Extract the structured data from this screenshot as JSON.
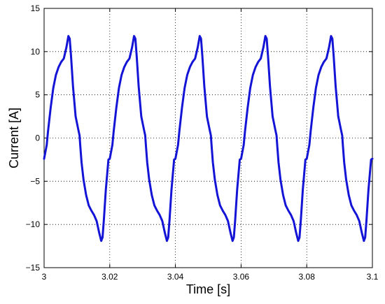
{
  "chart_data": {
    "type": "line",
    "title": "",
    "xlabel": "Time [s]",
    "ylabel": "Current [A]",
    "xlim": [
      3.0,
      3.1
    ],
    "ylim": [
      -15,
      15
    ],
    "xticks": [
      3.0,
      3.02,
      3.04,
      3.06,
      3.08,
      3.1
    ],
    "xtick_labels": [
      "3",
      "3.02",
      "3.04",
      "3.06",
      "3.08",
      "3.1"
    ],
    "yticks": [
      -15,
      -10,
      -5,
      0,
      5,
      10,
      15
    ],
    "ytick_labels": [
      "−15",
      "−10",
      "−5",
      "0",
      "5",
      "10",
      "15"
    ],
    "grid": true,
    "series_color": "#1414d6",
    "series": [
      {
        "x": [
          3.0,
          3.0008,
          3.0012,
          3.002,
          3.0028,
          3.0036,
          3.0044,
          3.0052,
          3.006,
          3.0068,
          3.0074,
          3.0078,
          3.0082,
          3.0088,
          3.0096,
          3.0104,
          3.0108,
          3.011,
          3.0114,
          3.012,
          3.0128,
          3.0136,
          3.0144,
          3.0152,
          3.016,
          3.0168,
          3.0174,
          3.0178,
          3.0182,
          3.0188,
          3.0196,
          3.02,
          3.0208,
          3.0212,
          3.022,
          3.0228,
          3.0236,
          3.0244,
          3.0252,
          3.026,
          3.0268,
          3.0274,
          3.0278,
          3.0282,
          3.0288,
          3.0296,
          3.0304,
          3.0308,
          3.031,
          3.0314,
          3.032,
          3.0328,
          3.0336,
          3.0344,
          3.0352,
          3.036,
          3.0368,
          3.0374,
          3.0378,
          3.0382,
          3.0388,
          3.0396,
          3.04,
          3.0408,
          3.0412,
          3.042,
          3.0428,
          3.0436,
          3.0444,
          3.0452,
          3.046,
          3.0468,
          3.0474,
          3.0478,
          3.0482,
          3.0488,
          3.0496,
          3.0504,
          3.0508,
          3.051,
          3.0514,
          3.052,
          3.0528,
          3.0536,
          3.0544,
          3.0552,
          3.056,
          3.0568,
          3.0574,
          3.0578,
          3.0582,
          3.0588,
          3.0596,
          3.06,
          3.0608,
          3.0612,
          3.062,
          3.0628,
          3.0636,
          3.0644,
          3.0652,
          3.066,
          3.0668,
          3.0674,
          3.0678,
          3.0682,
          3.0688,
          3.0696,
          3.0704,
          3.0708,
          3.071,
          3.0714,
          3.072,
          3.0728,
          3.0736,
          3.0744,
          3.0752,
          3.076,
          3.0768,
          3.0774,
          3.0778,
          3.0782,
          3.0788,
          3.0796,
          3.08,
          3.0808,
          3.0812,
          3.082,
          3.0828,
          3.0836,
          3.0844,
          3.0852,
          3.086,
          3.0868,
          3.0874,
          3.0878,
          3.0882,
          3.0888,
          3.0896,
          3.0904,
          3.0908,
          3.091,
          3.0914,
          3.092,
          3.0928,
          3.0936,
          3.0944,
          3.0952,
          3.096,
          3.0968,
          3.0974,
          3.0978,
          3.0982,
          3.0988,
          3.0996,
          3.1
        ],
        "y": [
          -2.4,
          -0.8,
          0.8,
          3.5,
          5.8,
          7.3,
          8.2,
          8.8,
          9.2,
          10.5,
          11.8,
          11.5,
          9.5,
          6.0,
          2.5,
          1.0,
          0.3,
          -0.8,
          -2.8,
          -4.8,
          -6.6,
          -7.8,
          -8.4,
          -8.9,
          -9.6,
          -11.0,
          -11.9,
          -11.5,
          -9.5,
          -6.0,
          -2.5,
          -2.4,
          -0.8,
          0.8,
          3.5,
          5.8,
          7.3,
          8.2,
          8.8,
          9.2,
          10.5,
          11.8,
          11.5,
          9.5,
          6.0,
          2.5,
          1.0,
          0.3,
          -0.8,
          -2.8,
          -4.8,
          -6.6,
          -7.8,
          -8.4,
          -8.9,
          -9.6,
          -11.0,
          -11.9,
          -11.5,
          -9.5,
          -6.0,
          -2.5,
          -2.4,
          -0.8,
          0.8,
          3.5,
          5.8,
          7.3,
          8.2,
          8.8,
          9.2,
          10.5,
          11.8,
          11.5,
          9.5,
          6.0,
          2.5,
          1.0,
          0.3,
          -0.8,
          -2.8,
          -4.8,
          -6.6,
          -7.8,
          -8.4,
          -8.9,
          -9.6,
          -11.0,
          -11.9,
          -11.5,
          -9.5,
          -6.0,
          -2.5,
          -2.4,
          -0.8,
          0.8,
          3.5,
          5.8,
          7.3,
          8.2,
          8.8,
          9.2,
          10.5,
          11.8,
          11.5,
          9.5,
          6.0,
          2.5,
          1.0,
          0.3,
          -0.8,
          -2.8,
          -4.8,
          -6.6,
          -7.8,
          -8.4,
          -8.9,
          -9.6,
          -11.0,
          -11.9,
          -11.5,
          -9.5,
          -6.0,
          -2.5,
          -2.4,
          -0.8,
          0.8,
          3.5,
          5.8,
          7.3,
          8.2,
          8.8,
          9.2,
          10.5,
          11.8,
          11.5,
          9.5,
          6.0,
          2.5,
          1.0,
          0.3,
          -0.8,
          -2.8,
          -4.8,
          -6.6,
          -7.8,
          -8.4,
          -8.9,
          -9.6,
          -11.0,
          -11.9,
          -11.5,
          -9.5,
          -6.0,
          -2.5,
          -2.4
        ]
      }
    ]
  }
}
